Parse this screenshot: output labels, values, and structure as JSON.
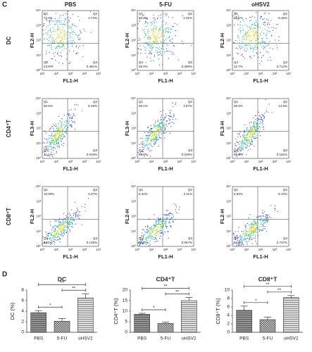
{
  "flow": {
    "panel_label": "C",
    "columns": [
      "PBS",
      "5-FU",
      "oHSV2"
    ],
    "x_label": "FL1-H",
    "ticks": [
      "10⁰",
      "10¹",
      "10²",
      "10³",
      "10⁴"
    ],
    "quadrant_names": [
      "Q1",
      "Q2",
      "Q3",
      "Q4"
    ],
    "rows": [
      {
        "label": "DC",
        "y_label": "FL2-H",
        "plots": [
          {
            "values": [
              "72.0%",
              "3.74%",
              "0.481%",
              "23.8%"
            ]
          },
          {
            "values": [
              "68.6%",
              "2.02%",
              "0.398%",
              "29.0%"
            ]
          },
          {
            "values": [
              "60.1%",
              "6.46%",
              "0.712%",
              "32.7%"
            ]
          }
        ]
      },
      {
        "label": "CD4⁺T",
        "y_label": "FL3-H",
        "plots": [
          {
            "values": [
              "50.6%",
              "8.29%",
              "0.019%",
              "41.1%"
            ]
          },
          {
            "values": [
              "36.1%",
              "4.87%",
              "0.029%",
              "59.0%"
            ]
          },
          {
            "values": [
              "28.3%",
              "14.6%",
              "0.162%",
              "56.9%"
            ]
          }
        ]
      },
      {
        "label": "CD8⁺T",
        "y_label": "FL2-H",
        "plots": [
          {
            "values": [
              "10.00%",
              "5.37%",
              "0.135%",
              "84.5%"
            ]
          },
          {
            "values": [
              "6.44%",
              "3.11%",
              "0.067%",
              "90.4%"
            ]
          },
          {
            "values": [
              "6.93%",
              "8.10%",
              "0.737%",
              "84.2%"
            ]
          }
        ]
      }
    ]
  },
  "bars_panel_label": "D",
  "chart_data": [
    {
      "type": "bar",
      "title": "DC",
      "y_label": "DC (%)",
      "categories": [
        "PBS",
        "5-FU",
        "oHSV2"
      ],
      "values": [
        3.7,
        2.1,
        6.5
      ],
      "errors": [
        0.4,
        0.5,
        0.8
      ],
      "ylim": [
        0,
        8
      ],
      "yticks": [
        0,
        2,
        4,
        6,
        8
      ],
      "comparisons": [
        {
          "pair": [
            "PBS",
            "5-FU"
          ],
          "label": "*"
        },
        {
          "pair": [
            "5-FU",
            "oHSV2"
          ],
          "label": "**"
        },
        {
          "pair": [
            "PBS",
            "oHSV2"
          ],
          "label": "**"
        }
      ]
    },
    {
      "type": "bar",
      "title": "CD4⁺T",
      "y_label": "CD4⁺T (%)",
      "categories": [
        "PBS",
        "5-FU",
        "oHSV2"
      ],
      "values": [
        8.5,
        4.2,
        15.0
      ],
      "errors": [
        0.5,
        0.6,
        1.5
      ],
      "ylim": [
        0,
        20
      ],
      "yticks": [
        0,
        5,
        10,
        15,
        20
      ],
      "comparisons": [
        {
          "pair": [
            "PBS",
            "5-FU"
          ],
          "label": "*"
        },
        {
          "pair": [
            "5-FU",
            "oHSV2"
          ],
          "label": "**"
        },
        {
          "pair": [
            "PBS",
            "oHSV2"
          ],
          "label": "**"
        }
      ]
    },
    {
      "type": "bar",
      "title": "CD8⁺T",
      "y_label": "CD8⁺T (%)",
      "categories": [
        "PBS",
        "5-FU",
        "oHSV2"
      ],
      "values": [
        5.2,
        3.0,
        8.2
      ],
      "errors": [
        1.0,
        0.6,
        0.5
      ],
      "ylim": [
        0,
        10
      ],
      "yticks": [
        0,
        2,
        4,
        6,
        8,
        10
      ],
      "comparisons": [
        {
          "pair": [
            "PBS",
            "5-FU"
          ],
          "label": "*"
        },
        {
          "pair": [
            "5-FU",
            "oHSV2"
          ],
          "label": "**"
        },
        {
          "pair": [
            "PBS",
            "oHSV2"
          ],
          "label": "**"
        }
      ]
    }
  ]
}
